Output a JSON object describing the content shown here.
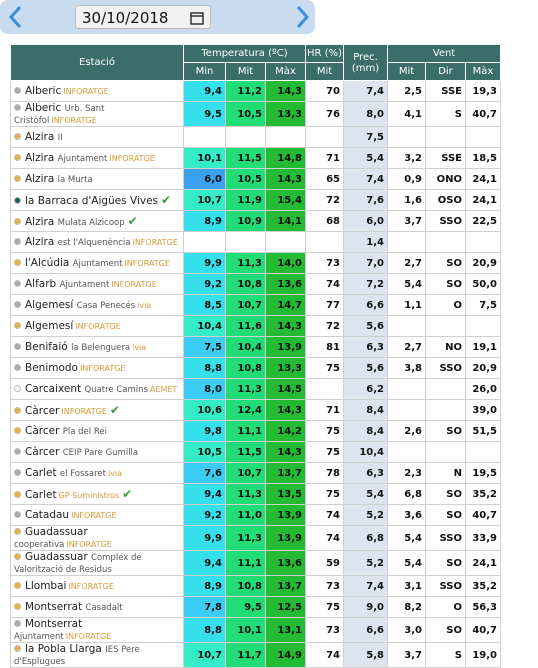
{
  "toolbar": {
    "date": "30/10/2018"
  },
  "table": {
    "header": {
      "station": "Estació",
      "temperature": "Temperatura (ºC)",
      "humidity": "HR (%)",
      "precipitation": "Prec. (mm)",
      "wind": "Vent",
      "sub": [
        "Min",
        "Mit",
        "Màx",
        "Mit",
        "Mit",
        "Dir",
        "Màx"
      ]
    },
    "rows": [
      {
        "name": "Alberic",
        "source": "INFORATGE",
        "dot": "#aaaaaa",
        "cells": [
          "9,4",
          "11,2",
          "14,3",
          "70",
          "7,4",
          "2,5",
          "SSE",
          "19,3"
        ]
      },
      {
        "name": "Alberic",
        "sub": "Urb. Sant Cristòfol",
        "source": "INFORATGE",
        "dot": "#aaaaaa",
        "cells": [
          "9,5",
          "10,5",
          "13,3",
          "76",
          "8,0",
          "4,1",
          "S",
          "40,7"
        ]
      },
      {
        "name": "Alzira",
        "sub": "II",
        "dot": "#f0b040",
        "cells": [
          null,
          null,
          null,
          null,
          "7,5",
          null,
          null,
          null
        ]
      },
      {
        "name": "Alzira",
        "sub": "Ajuntament",
        "source": "INFORATGE",
        "dot": "#f0b040",
        "cells": [
          "10,1",
          "11,5",
          "14,8",
          "71",
          "5,4",
          "3,2",
          "SSE",
          "18,5"
        ]
      },
      {
        "name": "Alzira",
        "sub": "la Murta",
        "dot": "#f0b040",
        "cells": [
          "6,0",
          "10,5",
          "14,3",
          "65",
          "7,4",
          "0,9",
          "ONO",
          "24,1"
        ]
      },
      {
        "name": "la Barraca d'Aigües Vives",
        "dot": "#1f5a5a",
        "check": true,
        "cells": [
          "10,7",
          "11,9",
          "15,4",
          "72",
          "7,6",
          "1,6",
          "OSO",
          "24,1"
        ]
      },
      {
        "name": "Alzira",
        "sub": "Mulata Alzicoop",
        "dot": "#f0b040",
        "check": true,
        "cells": [
          "8,9",
          "10,9",
          "14,1",
          "68",
          "6,0",
          "3,7",
          "SSO",
          "22,5"
        ]
      },
      {
        "name": "Alzira",
        "sub": "est l'Alquenència",
        "source": "INFORATGE",
        "dot": "#aaaaaa",
        "cells": [
          null,
          null,
          null,
          null,
          "1,4",
          null,
          null,
          null
        ]
      },
      {
        "name": "l'Alcúdia",
        "sub": "Ajuntament",
        "source": "INFORATGE",
        "dot": "#f0b040",
        "cells": [
          "9,9",
          "11,3",
          "14,0",
          "73",
          "7,0",
          "2,7",
          "SO",
          "20,9"
        ]
      },
      {
        "name": "Alfarb",
        "sub": "Ajuntament",
        "source": "INFORATGE",
        "dot": "#aaaaaa",
        "cells": [
          "9,2",
          "10,8",
          "13,6",
          "74",
          "7,2",
          "5,4",
          "SO",
          "50,0"
        ]
      },
      {
        "name": "Algemesí",
        "sub": "Casa Penecés",
        "source": "ivia",
        "dot": "#aaaaaa",
        "cells": [
          "8,5",
          "10,7",
          "14,7",
          "77",
          "6,6",
          "1,1",
          "O",
          "7,5"
        ]
      },
      {
        "name": "Algemesí",
        "source": "INFORATGE",
        "dot": "#f0b040",
        "cells": [
          "10,4",
          "11,6",
          "14,3",
          "72",
          "5,6",
          null,
          null,
          null
        ]
      },
      {
        "name": "Benifaió",
        "sub": "la Belenguera",
        "source": "ivia",
        "dot": "#aaaaaa",
        "cells": [
          "7,5",
          "10,4",
          "13,9",
          "81",
          "6,3",
          "2,7",
          "NO",
          "19,1"
        ]
      },
      {
        "name": "Benimodo",
        "source": "INFORATGE",
        "dot": "#aaaaaa",
        "cells": [
          "8,8",
          "10,8",
          "13,3",
          "75",
          "5,6",
          "3,8",
          "SSO",
          "20,9"
        ]
      },
      {
        "name": "Carcaixent",
        "sub": "Quatre Camins",
        "source": "AEMET",
        "dot": "#ffffff",
        "cells": [
          "8,0",
          "11,3",
          "14,5",
          null,
          "6,2",
          null,
          null,
          "26,0"
        ]
      },
      {
        "name": "Càrcer",
        "source": "INFORATGE",
        "dot": "#f0b040",
        "check": true,
        "cells": [
          "10,6",
          "12,4",
          "14,3",
          "71",
          "8,4",
          null,
          null,
          "39,0"
        ]
      },
      {
        "name": "Càrcer",
        "sub": "Pla del Rei",
        "dot": "#f0b040",
        "cells": [
          "9,8",
          "11,1",
          "14,2",
          "75",
          "8,4",
          "2,6",
          "SO",
          "51,5"
        ]
      },
      {
        "name": "Càrcer",
        "sub": "CEIP Pare Gumilla",
        "dot": "#aaaaaa",
        "cells": [
          "10,5",
          "11,5",
          "14,3",
          "75",
          "10,4",
          null,
          null,
          null
        ]
      },
      {
        "name": "Carlet",
        "sub": "el Fossaret",
        "source": "ivia",
        "dot": "#aaaaaa",
        "cells": [
          "7,6",
          "10,7",
          "13,7",
          "78",
          "6,3",
          "2,3",
          "N",
          "19,5"
        ]
      },
      {
        "name": "Carlet",
        "source": "GP Suministros",
        "dot": "#f0b040",
        "check": true,
        "cells": [
          "9,4",
          "11,3",
          "13,5",
          "75",
          "5,4",
          "6,8",
          "SO",
          "35,2"
        ]
      },
      {
        "name": "Catadau",
        "source": "INFORATGE",
        "dot": "#aaaaaa",
        "cells": [
          "9,2",
          "11,0",
          "13,9",
          "74",
          "5,2",
          "3,6",
          "SO",
          "40,7"
        ]
      },
      {
        "name": "Guadassuar",
        "sub": "cooperativa",
        "source": "INFORATGE",
        "dot": "#f0b040",
        "cells": [
          "9,9",
          "11,3",
          "13,9",
          "74",
          "6,8",
          "5,4",
          "SSO",
          "33,9"
        ]
      },
      {
        "name": "Guadassuar",
        "sub": "Complex de Valorització de Residus",
        "dot": "#f0b040",
        "cells": [
          "9,4",
          "11,1",
          "13,6",
          "59",
          "5,2",
          "5,4",
          "SO",
          "24,1"
        ]
      },
      {
        "name": "Llombai",
        "source": "INFORATGE",
        "dot": "#f0b040",
        "cells": [
          "8,9",
          "10,8",
          "13,7",
          "73",
          "7,4",
          "3,1",
          "SSO",
          "35,2"
        ]
      },
      {
        "name": "Montserrat",
        "sub": "Casadalt",
        "dot": "#f0b040",
        "cells": [
          "7,8",
          "9,5",
          "12,5",
          "75",
          "9,0",
          "8,2",
          "O",
          "56,3"
        ]
      },
      {
        "name": "Montserrat",
        "sub": "Ajuntament",
        "source": "INFORATGE",
        "dot": "#aaaaaa",
        "cells": [
          "8,8",
          "10,1",
          "13,1",
          "73",
          "6,6",
          "3,0",
          "SO",
          "40,7"
        ]
      },
      {
        "name": "la Pobla Llarga",
        "sub": "IES Pere d'Esplugues",
        "dot": "#f0b040",
        "cells": [
          "10,7",
          "11,7",
          "14,9",
          "74",
          "5,8",
          "3,7",
          "S",
          "19,0"
        ]
      }
    ]
  }
}
